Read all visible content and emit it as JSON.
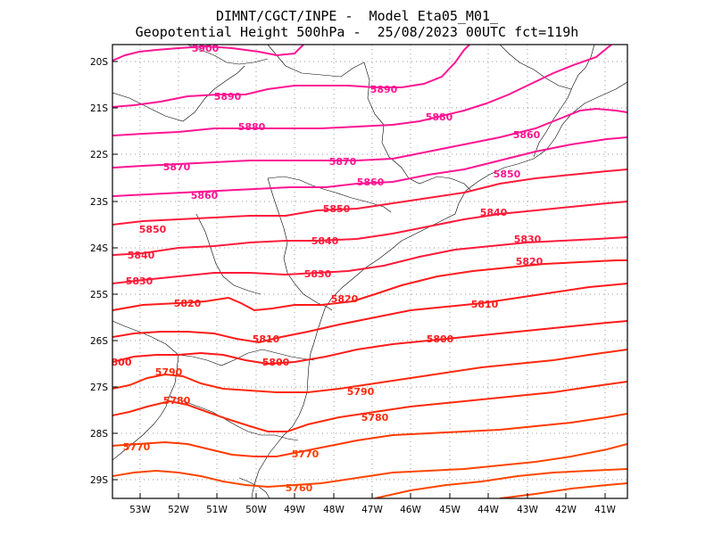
{
  "header": {
    "line1": "DIMNT/CGCT/INPE -  Model Eta05_M01_",
    "line2": "Geopotential Height 500hPa -  25/08/2023 00UTC fct=119h"
  },
  "axes": {
    "lat_labels": [
      "20S",
      "21S",
      "22S",
      "23S",
      "24S",
      "25S",
      "26S",
      "27S",
      "28S",
      "29S"
    ],
    "lon_labels": [
      "53W",
      "52W",
      "51W",
      "50W",
      "49W",
      "48W",
      "47W",
      "46W",
      "45W",
      "44W",
      "43W",
      "42W",
      "41W"
    ]
  },
  "colors": {
    "high": "#ff1493",
    "mid": "#ff1a1a",
    "low": "#ff4500",
    "boundary": "#000000",
    "grid": "#999999"
  },
  "contour_labels": [
    {
      "text": "5900",
      "color": "#ff1493"
    },
    {
      "text": "5890",
      "color": "#ff1493"
    },
    {
      "text": "5890",
      "color": "#ff1493"
    },
    {
      "text": "5880",
      "color": "#ff1493"
    },
    {
      "text": "5880",
      "color": "#ff1493"
    },
    {
      "text": "5860",
      "color": "#ff1493"
    },
    {
      "text": "5870",
      "color": "#ff1493"
    },
    {
      "text": "5870",
      "color": "#ff1493"
    },
    {
      "text": "5860",
      "color": "#ff1493"
    },
    {
      "text": "5850",
      "color": "#ff1493"
    },
    {
      "text": "5860",
      "color": "#ff1493"
    },
    {
      "text": "5850",
      "color": "#ff1a3a"
    },
    {
      "text": "5840",
      "color": "#ff1a3a"
    },
    {
      "text": "5850",
      "color": "#ff1a3a"
    },
    {
      "text": "5840",
      "color": "#ff1a3a"
    },
    {
      "text": "5840",
      "color": "#ff1a3a"
    },
    {
      "text": "5830",
      "color": "#ff1a3a"
    },
    {
      "text": "5820",
      "color": "#ff1a3a"
    },
    {
      "text": "5830",
      "color": "#ff1a3a"
    },
    {
      "text": "5830",
      "color": "#ff1a3a"
    },
    {
      "text": "5820",
      "color": "#ff1a1a"
    },
    {
      "text": "5820",
      "color": "#ff1a1a"
    },
    {
      "text": "5810",
      "color": "#ff1a1a"
    },
    {
      "text": "5810",
      "color": "#ff1a1a"
    },
    {
      "text": "5800",
      "color": "#ff1a1a"
    },
    {
      "text": "800",
      "color": "#ff1a1a"
    },
    {
      "text": "5800",
      "color": "#ff1a1a"
    },
    {
      "text": "5790",
      "color": "#ff2a0a"
    },
    {
      "text": "5790",
      "color": "#ff2a0a"
    },
    {
      "text": "5780",
      "color": "#ff2a0a"
    },
    {
      "text": "5780",
      "color": "#ff2a0a"
    },
    {
      "text": "5770",
      "color": "#ff3a00"
    },
    {
      "text": "5770",
      "color": "#ff3a00"
    },
    {
      "text": "5760",
      "color": "#ff4500"
    }
  ]
}
